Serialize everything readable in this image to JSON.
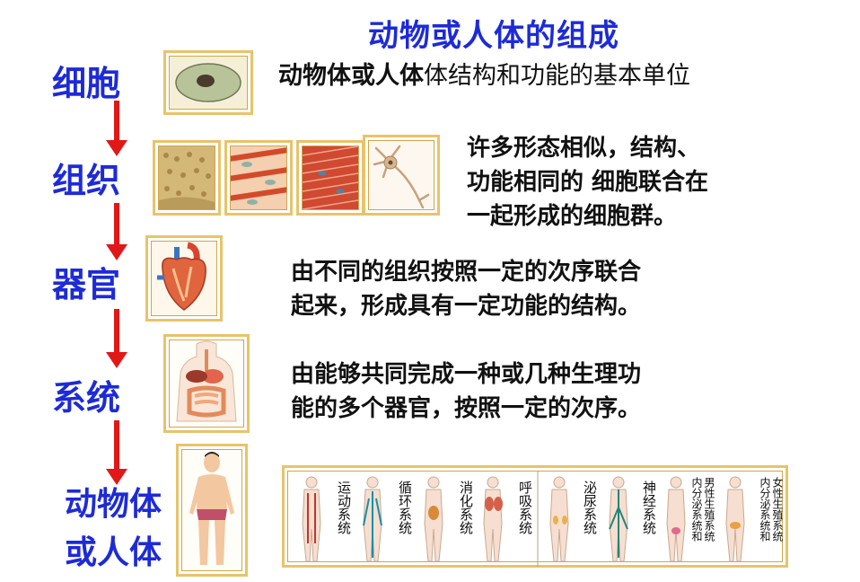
{
  "title": "动物或人体的组成",
  "levels": [
    {
      "label": "细胞"
    },
    {
      "label": "组织"
    },
    {
      "label": "器官"
    },
    {
      "label": "系统"
    },
    {
      "label_line1": "动物体",
      "label_line2": "或人体"
    }
  ],
  "descriptions": {
    "cell_bold": "动物体或人体",
    "cell_normal": "体结构和功能的基本单位",
    "tissue": [
      "许多形态相似，结构、",
      "功能相同的 细胞联合在",
      "一起形成的细胞群。"
    ],
    "organ": [
      "由不同的组织按照一定的次序联合",
      "起来，形成具有一定功能的结构。"
    ],
    "system": [
      "由能够共同完成一种或几种生理功",
      "能的多个器官，按照一定的次序。"
    ]
  },
  "systems": [
    "运动系统",
    "循环系统",
    "消化系统",
    "呼吸系统",
    "泌尿系统",
    "神经系统",
    "男性生殖系统",
    "内分泌系统和",
    "女性生殖系统",
    "内分泌系统和"
  ],
  "colors": {
    "title": "#1d2bd6",
    "arrow": "#e01818",
    "frame": "#e8c36a"
  }
}
